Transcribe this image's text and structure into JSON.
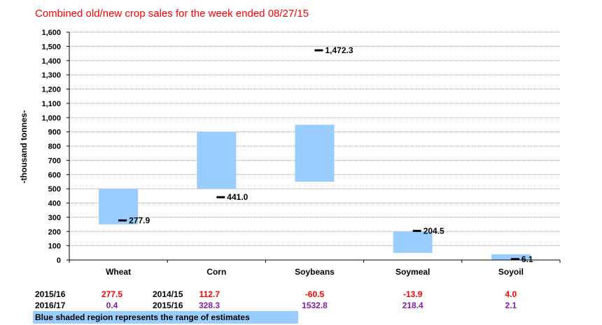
{
  "chart_data": {
    "type": "bar",
    "title": "Combined old/new crop sales for the week ended 08/27/15",
    "ylabel": "-thousand tonnes-",
    "ylim": [
      0,
      1600
    ],
    "yticks": [
      "0",
      "100",
      "200",
      "300",
      "400",
      "500",
      "600",
      "700",
      "800",
      "900",
      "1,000",
      "1,100",
      "1,200",
      "1,300",
      "1,400",
      "1,500",
      "1,600"
    ],
    "grid": true,
    "categories": [
      "Wheat",
      "Corn",
      "Soybeans",
      "Soymeal",
      "Soyoil"
    ],
    "ranges": [
      {
        "low": 250,
        "high": 500
      },
      {
        "low": 500,
        "high": 900
      },
      {
        "low": 550,
        "high": 950
      },
      {
        "low": 50,
        "high": 200
      },
      {
        "low": 0,
        "high": 40
      }
    ],
    "actuals": [
      277.9,
      441.0,
      1472.3,
      204.5,
      6.1
    ],
    "actual_labels": [
      "277.9",
      "441.0",
      "1,472.3",
      "204.5",
      "6.1"
    ],
    "colors": {
      "range": "#99ccff",
      "marker": "#000000",
      "title": "#ff0000",
      "prior": "#ff0000",
      "current": "#7f1f9f"
    }
  },
  "table": {
    "row1": {
      "label": "2015/16",
      "second_label": "2014/15",
      "values": [
        "277.5",
        "112.7",
        "-60.5",
        "-13.9",
        "4.0"
      ]
    },
    "row2": {
      "label": "2016/17",
      "second_label": "2015/16",
      "values": [
        "0.4",
        "328.3",
        "1532.8",
        "218.4",
        "2.1"
      ]
    }
  },
  "footnote": "Blue shaded region represents the range of estimates"
}
